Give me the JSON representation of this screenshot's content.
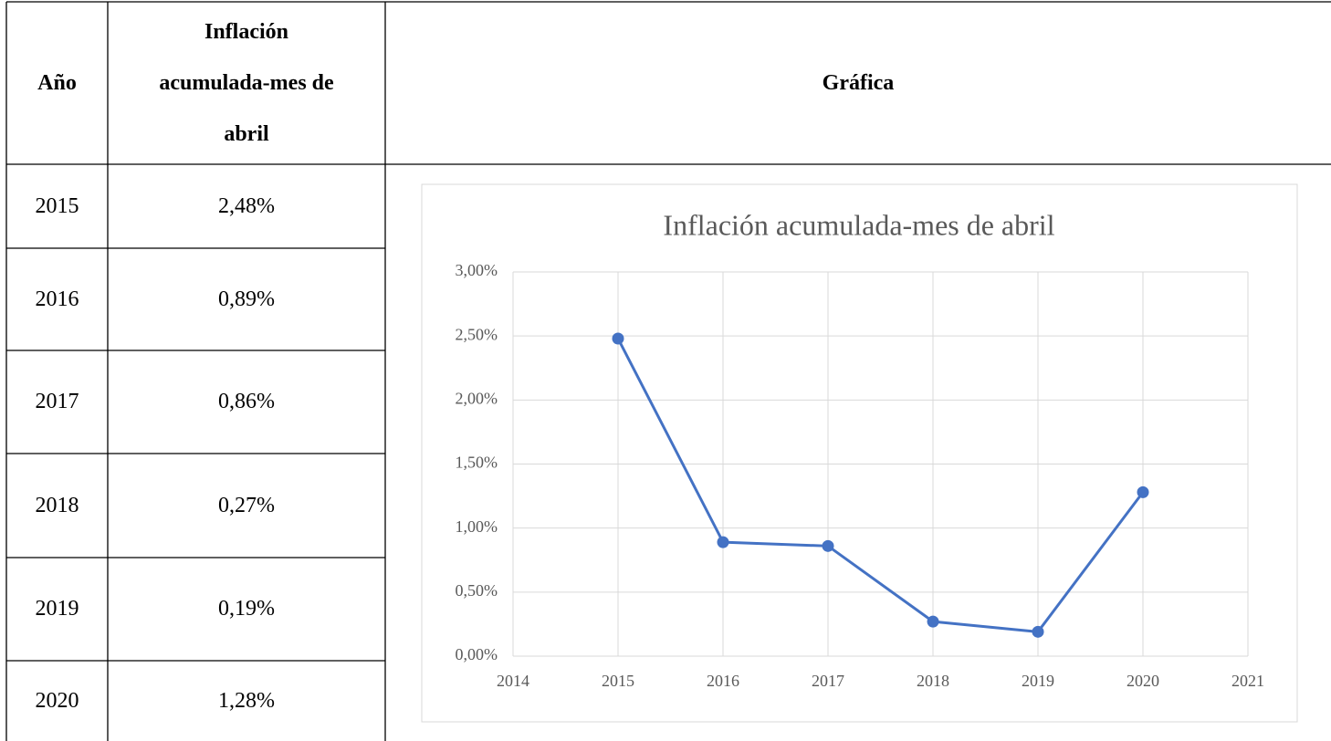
{
  "table": {
    "headers": [
      "Año",
      "Inflación acumulada-mes de abril",
      "Gráfica"
    ],
    "rows": [
      [
        "2015",
        "2,48%"
      ],
      [
        "2016",
        "0,89%"
      ],
      [
        "2017",
        "0,86%"
      ],
      [
        "2018",
        "0,27%"
      ],
      [
        "2019",
        "0,19%"
      ],
      [
        "2020",
        "1,28%"
      ]
    ]
  },
  "chart_data": {
    "type": "line",
    "title": "Inflación acumulada-mes de abril",
    "x": [
      2015,
      2016,
      2017,
      2018,
      2019,
      2020
    ],
    "values": [
      2.48,
      0.89,
      0.86,
      0.27,
      0.19,
      1.28
    ],
    "color": "#4472c4",
    "xlim": [
      2014,
      2021
    ],
    "xticks": [
      2014,
      2015,
      2016,
      2017,
      2018,
      2019,
      2020,
      2021
    ],
    "ylim": [
      0,
      3
    ],
    "yticks": [
      {
        "value": 0,
        "label": "0,00%"
      },
      {
        "value": 0.5,
        "label": "0,50%"
      },
      {
        "value": 1,
        "label": "1,00%"
      },
      {
        "value": 1.5,
        "label": "1,50%"
      },
      {
        "value": 2,
        "label": "2,00%"
      },
      {
        "value": 2.5,
        "label": "2,50%"
      },
      {
        "value": 3,
        "label": "3,00%"
      }
    ],
    "grid": true
  }
}
